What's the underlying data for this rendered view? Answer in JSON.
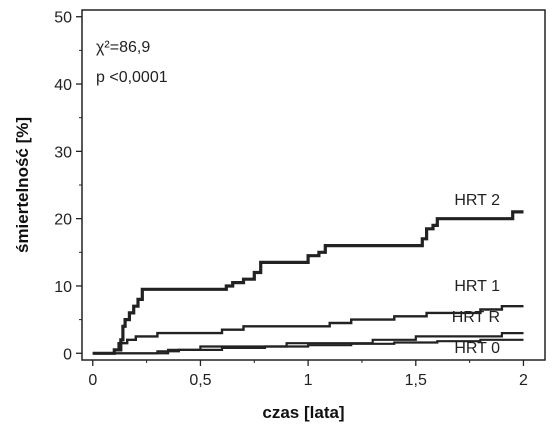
{
  "chart_data": {
    "type": "line",
    "step": true,
    "xlabel": "czas [lata]",
    "ylabel": "śmiertelność [%]",
    "xlim": [
      -0.05,
      2.1
    ],
    "ylim": [
      -1,
      51
    ],
    "x_ticks": [
      0,
      0.5,
      1,
      1.5,
      2
    ],
    "x_tick_labels": [
      "0",
      "0,5",
      "1",
      "1,5",
      "2"
    ],
    "y_ticks": [
      0,
      10,
      20,
      30,
      40,
      50
    ],
    "y_tick_labels": [
      "0",
      "10",
      "20",
      "30",
      "40",
      "50"
    ],
    "grid": false,
    "annotations": [
      "χ²=86,9",
      "p <0,0001"
    ],
    "series": [
      {
        "name": "HRT 2",
        "color": "#222222",
        "x": [
          0,
          0.08,
          0.1,
          0.12,
          0.13,
          0.14,
          0.15,
          0.17,
          0.19,
          0.21,
          0.23,
          0.26,
          0.4,
          0.56,
          0.62,
          0.65,
          0.7,
          0.75,
          0.78,
          0.85,
          0.9,
          0.95,
          1.0,
          1.05,
          1.08,
          1.1,
          1.15,
          1.2,
          1.3,
          1.4,
          1.5,
          1.53,
          1.55,
          1.58,
          1.6,
          1.65,
          1.7,
          1.8,
          1.9,
          1.95,
          2.0
        ],
        "y": [
          0,
          0,
          0.5,
          0.5,
          2,
          4,
          5,
          6,
          7,
          8,
          9.5,
          9.5,
          9.5,
          9.5,
          10,
          10.5,
          11,
          12,
          13.5,
          13.5,
          13.5,
          13.5,
          14.5,
          15,
          16,
          16,
          16,
          16,
          16,
          16,
          16,
          17,
          18.5,
          19,
          20,
          20,
          20,
          20,
          20,
          21,
          21
        ]
      },
      {
        "name": "HRT 1",
        "color": "#222222",
        "x": [
          0,
          0.06,
          0.1,
          0.12,
          0.14,
          0.16,
          0.2,
          0.3,
          0.4,
          0.6,
          0.7,
          0.8,
          1.0,
          1.1,
          1.2,
          1.3,
          1.4,
          1.5,
          1.55,
          1.7,
          1.8,
          1.9,
          1.95,
          2.0
        ],
        "y": [
          0,
          0,
          0.5,
          1.5,
          1.5,
          2,
          2.5,
          3,
          3,
          3.5,
          4,
          4,
          4,
          4.5,
          5,
          5,
          5.5,
          5.5,
          6,
          6,
          6.5,
          7,
          7,
          7
        ]
      },
      {
        "name": "HRT Ř",
        "color": "#222222",
        "x": [
          0,
          0.15,
          0.35,
          0.5,
          0.7,
          0.9,
          1.1,
          1.3,
          1.5,
          1.6,
          1.75,
          1.9,
          2.0
        ],
        "y": [
          0,
          0,
          0.5,
          1,
          1,
          1.5,
          1.5,
          2,
          2.5,
          2.5,
          2.5,
          3,
          3
        ]
      },
      {
        "name": "HRT 0",
        "color": "#222222",
        "x": [
          0,
          0.2,
          0.3,
          0.4,
          0.6,
          0.8,
          1.0,
          1.2,
          1.4,
          1.6,
          1.8,
          2.0
        ],
        "y": [
          0,
          0,
          0.3,
          0.5,
          0.8,
          1,
          1.2,
          1.4,
          1.6,
          1.8,
          2,
          2
        ]
      }
    ]
  }
}
